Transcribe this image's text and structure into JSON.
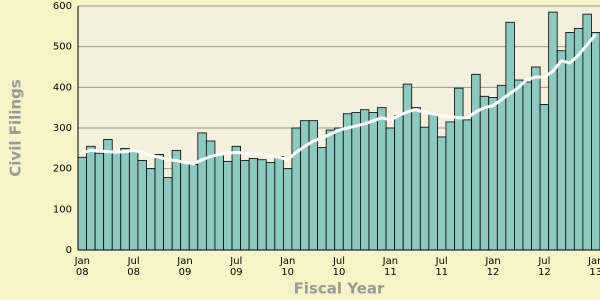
{
  "chart_data": {
    "type": "bar",
    "y_label": "Civil Filings",
    "x_label": "Fiscal Year",
    "categories": [
      [
        "Jan",
        "08"
      ],
      null,
      null,
      null,
      null,
      null,
      [
        "Jul",
        "08"
      ],
      null,
      null,
      null,
      null,
      null,
      [
        "Jan",
        "09"
      ],
      null,
      null,
      null,
      null,
      null,
      [
        "Jul",
        "09"
      ],
      null,
      null,
      null,
      null,
      null,
      [
        "Jan",
        "10"
      ],
      null,
      null,
      null,
      null,
      null,
      [
        "Jul",
        "10"
      ],
      null,
      null,
      null,
      null,
      null,
      [
        "Jan",
        "11"
      ],
      null,
      null,
      null,
      null,
      null,
      [
        "Jul",
        "11"
      ],
      null,
      null,
      null,
      null,
      null,
      [
        "Jan",
        "12"
      ],
      null,
      null,
      null,
      null,
      null,
      [
        "Jul",
        "12"
      ],
      null,
      null,
      null,
      null,
      null,
      [
        "Jan",
        "13"
      ]
    ],
    "series": [
      {
        "type": "bar",
        "color": "#8ec9c1",
        "values": [
          228,
          255,
          238,
          272,
          238,
          250,
          243,
          220,
          200,
          235,
          178,
          245,
          215,
          210,
          288,
          268,
          235,
          218,
          255,
          220,
          225,
          222,
          215,
          230,
          200,
          300,
          318,
          318,
          252,
          295,
          300,
          335,
          338,
          345,
          338,
          350,
          300,
          330,
          408,
          350,
          302,
          335,
          278,
          315,
          398,
          320,
          432,
          378,
          375,
          405,
          560,
          418,
          413,
          450,
          358,
          585,
          490,
          535,
          545,
          580,
          535
        ]
      },
      {
        "type": "line",
        "color": "#ffffff",
        "values": [
          240,
          245,
          243,
          242,
          240,
          242,
          245,
          240,
          232,
          228,
          222,
          220,
          215,
          212,
          222,
          230,
          235,
          238,
          240,
          238,
          236,
          235,
          230,
          228,
          222,
          240,
          255,
          268,
          275,
          285,
          295,
          300,
          305,
          310,
          318,
          325,
          320,
          330,
          340,
          345,
          338,
          335,
          330,
          328,
          325,
          325,
          340,
          350,
          355,
          370,
          385,
          400,
          420,
          425,
          425,
          440,
          465,
          460,
          480,
          505,
          530
        ]
      }
    ],
    "ylim": [
      0,
      600
    ],
    "yticks": [
      0,
      100,
      200,
      300,
      400,
      500,
      600
    ],
    "grid": true
  }
}
